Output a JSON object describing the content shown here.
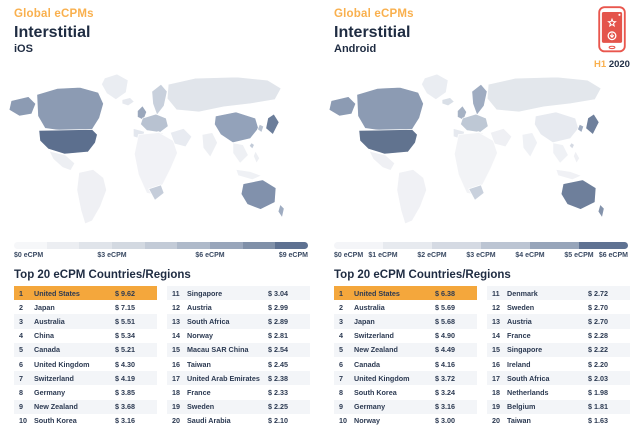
{
  "badge": {
    "period_prefix": "H1",
    "period_year": "2020",
    "phone_icon": "phone-with-star-and-download-badge"
  },
  "colors": {
    "accent_orange": "#F4A73C",
    "heading_orange": "#F9B04E",
    "text_navy": "#283850",
    "row_alt": "#F3F5F8",
    "phone_red": "#E9564D"
  },
  "panels": [
    {
      "eyebrow": "Global eCPMs",
      "title": "Interstitial",
      "platform": "iOS",
      "table_title": "Top 20 eCPM Countries/Regions",
      "legend": {
        "labels": [
          "$0 eCPM",
          "$3 eCPM",
          "$6 eCPM",
          "$9 eCPM"
        ],
        "segments": [
          "#F6F7F9",
          "#ECEEF2",
          "#E0E4EA",
          "#D3D9E1",
          "#C3CBD7",
          "#AFBACA",
          "#99A6BB",
          "#8090A8",
          "#5E7191"
        ]
      },
      "map_default": "#F0F1F5",
      "map_fills": {
        "greenland": "#EAEDF2",
        "alaska": "#8C9BB3",
        "canada": "#8C9BB3",
        "usa": "#5C6F8E",
        "mexico": "#EDEFF3",
        "south_america": "#EFF0F4",
        "iceland": "#E6E9EF",
        "uk": "#9AA7BC",
        "scandinavia": "#C8D0DC",
        "europe": "#B8C2D1",
        "iberia": "#E3E7EE",
        "italy": "#DDE2EA",
        "russia": "#E1E5EB",
        "middle_east": "#E8EBF1",
        "africa": "#F1F2F6",
        "south_africa": "#C5CDDA",
        "india": "#EDEFF3",
        "china": "#93A2BA",
        "se_asia": "#EEF0F4",
        "indonesia": "#EFF1F5",
        "philippines": "#EDEFF3",
        "japan": "#6B7D9A",
        "korea": "#B9C3D2",
        "taiwan": "#C2CBD8",
        "australia": "#8191AC",
        "new_zealand": "#9FACC1"
      }
    },
    {
      "eyebrow": "Global eCPMs",
      "title": "Interstitial",
      "platform": "Android",
      "table_title": "Top 20 eCPM Countries/Regions",
      "legend": {
        "labels": [
          "$0 eCPM",
          "$1 eCPM",
          "$2 eCPM",
          "$3 eCPM",
          "$4 eCPM",
          "$5 eCPM",
          "$6 eCPM"
        ],
        "segments": [
          "#F4F5F8",
          "#E7EAEF",
          "#D5DAE3",
          "#BCC5D3",
          "#97A5BA",
          "#5F7292"
        ]
      },
      "map_default": "#F0F1F5",
      "map_fills": {
        "greenland": "#EAEDF2",
        "alaska": "#8C9BB3",
        "canada": "#8C9BB3",
        "usa": "#61738F",
        "mexico": "#EFF0F4",
        "south_america": "#F0F1F5",
        "iceland": "#D9DFE7",
        "uk": "#A6B2C4",
        "scandinavia": "#9FACC1",
        "europe": "#BEC8D5",
        "iberia": "#E6E9EF",
        "italy": "#E2E6EC",
        "russia": "#E3E7EC",
        "middle_east": "#EFF0F4",
        "africa": "#F2F3F6",
        "south_africa": "#C9D1DD",
        "india": "#EFF1F5",
        "china": "#E7EAF0",
        "se_asia": "#EFF1F5",
        "indonesia": "#F0F1F5",
        "philippines": "#EFF0F4",
        "japan": "#6F809C",
        "korea": "#9FACC1",
        "taiwan": "#D5DAE3",
        "australia": "#6E7F9B",
        "new_zealand": "#8493AB"
      }
    }
  ],
  "chart_data": [
    {
      "type": "heatmap",
      "subtype": "choropleth_world_map_with_ranking_table",
      "title": "Global eCPMs — Interstitial — iOS",
      "metric": "eCPM (USD)",
      "period": "H1 2020",
      "scale": {
        "min": 0,
        "max": 9,
        "tick_labels": [
          "$0 eCPM",
          "$3 eCPM",
          "$6 eCPM",
          "$9 eCPM"
        ],
        "low_color": "#F6F7F9",
        "high_color": "#5E7191"
      },
      "table_title": "Top 20 eCPM Countries/Regions",
      "top20": [
        [
          "United States",
          9.62
        ],
        [
          "Japan",
          7.15
        ],
        [
          "Australia",
          5.51
        ],
        [
          "China",
          5.34
        ],
        [
          "Canada",
          5.21
        ],
        [
          "United Kingdom",
          4.3
        ],
        [
          "Switzerland",
          4.19
        ],
        [
          "Germany",
          3.85
        ],
        [
          "New Zealand",
          3.68
        ],
        [
          "South Korea",
          3.16
        ],
        [
          "Singapore",
          3.04
        ],
        [
          "Austria",
          2.99
        ],
        [
          "South Africa",
          2.89
        ],
        [
          "Norway",
          2.81
        ],
        [
          "Macau SAR China",
          2.54
        ],
        [
          "Taiwan",
          2.45
        ],
        [
          "United Arab Emirates",
          2.38
        ],
        [
          "France",
          2.33
        ],
        [
          "Sweden",
          2.25
        ],
        [
          "Saudi Arabia",
          2.1
        ]
      ]
    },
    {
      "type": "heatmap",
      "subtype": "choropleth_world_map_with_ranking_table",
      "title": "Global eCPMs — Interstitial — Android",
      "metric": "eCPM (USD)",
      "period": "H1 2020",
      "scale": {
        "min": 0,
        "max": 6,
        "tick_labels": [
          "$0 eCPM",
          "$1 eCPM",
          "$2 eCPM",
          "$3 eCPM",
          "$4 eCPM",
          "$5 eCPM",
          "$6 eCPM"
        ],
        "low_color": "#F4F5F8",
        "high_color": "#5F7292"
      },
      "table_title": "Top 20 eCPM Countries/Regions",
      "top20": [
        [
          "United States",
          6.38
        ],
        [
          "Australia",
          5.69
        ],
        [
          "Japan",
          5.68
        ],
        [
          "Switzerland",
          4.9
        ],
        [
          "New Zealand",
          4.49
        ],
        [
          "Canada",
          4.16
        ],
        [
          "United Kingdom",
          3.72
        ],
        [
          "South Korea",
          3.24
        ],
        [
          "Germany",
          3.16
        ],
        [
          "Norway",
          3.0
        ],
        [
          "Denmark",
          2.72
        ],
        [
          "Sweden",
          2.7
        ],
        [
          "Austria",
          2.7
        ],
        [
          "France",
          2.28
        ],
        [
          "Singapore",
          2.22
        ],
        [
          "Ireland",
          2.2
        ],
        [
          "South Africa",
          2.03
        ],
        [
          "Netherlands",
          1.98
        ],
        [
          "Belgium",
          1.81
        ],
        [
          "Taiwan",
          1.63
        ]
      ]
    }
  ]
}
